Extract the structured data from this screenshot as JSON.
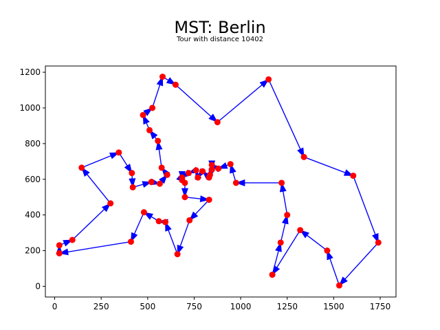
{
  "chart_data": {
    "type": "scatter",
    "title": "MST: Berlin",
    "subtitle": "Tour with distance 10402",
    "xlim": [
      -50,
      1835
    ],
    "ylim": [
      -60,
      1235
    ],
    "xticks": [
      0,
      250,
      500,
      750,
      1000,
      1250,
      1500,
      1750
    ],
    "yticks": [
      0,
      200,
      400,
      600,
      800,
      1000,
      1200
    ],
    "grid": false,
    "point_color": "#ff0000",
    "edge_color": "#0000ff",
    "cities": [
      {
        "x": 565,
        "y": 575
      },
      {
        "x": 25,
        "y": 185
      },
      {
        "x": 345,
        "y": 750
      },
      {
        "x": 945,
        "y": 685
      },
      {
        "x": 845,
        "y": 655
      },
      {
        "x": 880,
        "y": 660
      },
      {
        "x": 25,
        "y": 230
      },
      {
        "x": 525,
        "y": 1000
      },
      {
        "x": 580,
        "y": 1175
      },
      {
        "x": 650,
        "y": 1130
      },
      {
        "x": 1605,
        "y": 620
      },
      {
        "x": 1220,
        "y": 580
      },
      {
        "x": 1465,
        "y": 200
      },
      {
        "x": 1530,
        "y": 5
      },
      {
        "x": 845,
        "y": 680
      },
      {
        "x": 725,
        "y": 370
      },
      {
        "x": 145,
        "y": 665
      },
      {
        "x": 415,
        "y": 635
      },
      {
        "x": 510,
        "y": 875
      },
      {
        "x": 560,
        "y": 365
      },
      {
        "x": 300,
        "y": 465
      },
      {
        "x": 520,
        "y": 585
      },
      {
        "x": 480,
        "y": 415
      },
      {
        "x": 835,
        "y": 625
      },
      {
        "x": 975,
        "y": 580
      },
      {
        "x": 1215,
        "y": 245
      },
      {
        "x": 1320,
        "y": 315
      },
      {
        "x": 1250,
        "y": 400
      },
      {
        "x": 660,
        "y": 180
      },
      {
        "x": 410,
        "y": 250
      },
      {
        "x": 420,
        "y": 555
      },
      {
        "x": 575,
        "y": 665
      },
      {
        "x": 1150,
        "y": 1160
      },
      {
        "x": 700,
        "y": 580
      },
      {
        "x": 685,
        "y": 595
      },
      {
        "x": 685,
        "y": 610
      },
      {
        "x": 770,
        "y": 610
      },
      {
        "x": 795,
        "y": 645
      },
      {
        "x": 720,
        "y": 635
      },
      {
        "x": 760,
        "y": 650
      },
      {
        "x": 475,
        "y": 960
      },
      {
        "x": 95,
        "y": 260
      },
      {
        "x": 875,
        "y": 920
      },
      {
        "x": 700,
        "y": 500
      },
      {
        "x": 555,
        "y": 815
      },
      {
        "x": 830,
        "y": 485
      },
      {
        "x": 1170,
        "y": 65
      },
      {
        "x": 830,
        "y": 610
      },
      {
        "x": 605,
        "y": 625
      },
      {
        "x": 595,
        "y": 360
      },
      {
        "x": 1340,
        "y": 725
      },
      {
        "x": 1740,
        "y": 245
      }
    ],
    "tour": [
      0,
      48,
      31,
      44,
      18,
      40,
      7,
      8,
      9,
      42,
      32,
      50,
      10,
      51,
      13,
      12,
      26,
      46,
      25,
      27,
      11,
      24,
      3,
      5,
      14,
      4,
      23,
      47,
      37,
      36,
      39,
      38,
      35,
      34,
      33,
      43,
      45,
      15,
      28,
      49,
      19,
      22,
      29,
      1,
      6,
      41,
      20,
      16,
      2,
      17,
      30,
      21,
      0
    ]
  }
}
